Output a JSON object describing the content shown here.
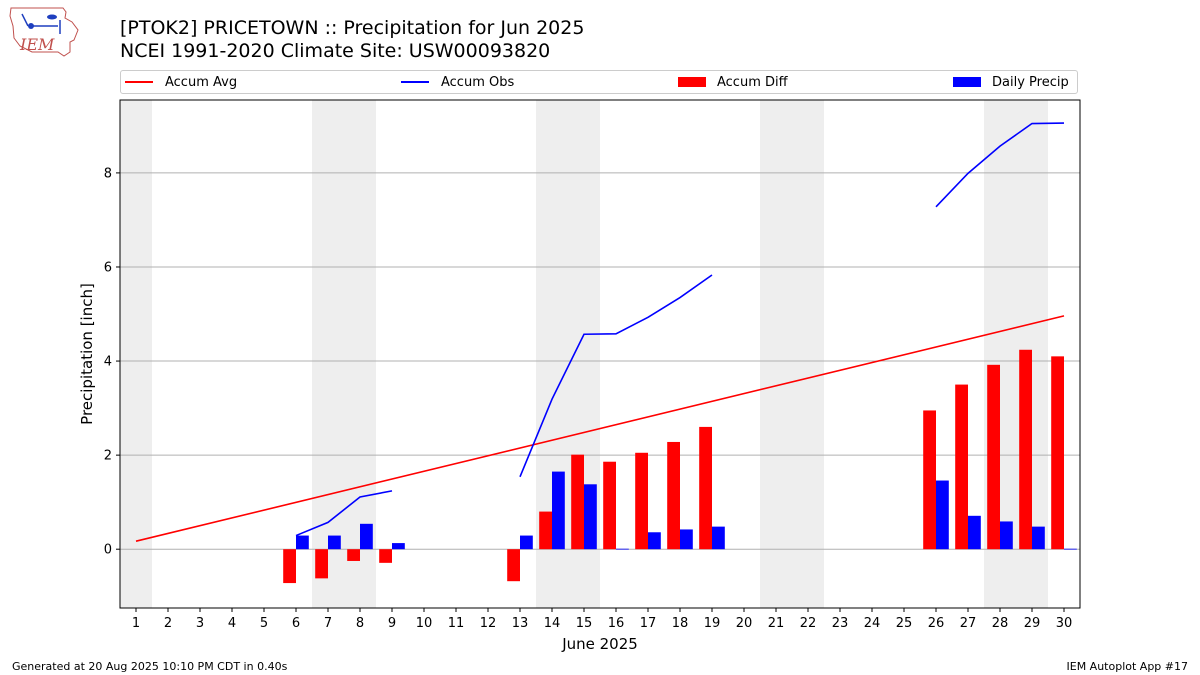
{
  "logo": {
    "text": "IEM"
  },
  "header": {
    "title": "[PTOK2] PRICETOWN :: Precipitation for Jun 2025",
    "subtitle": "NCEI 1991-2020 Climate Site: USW00093820"
  },
  "footer": {
    "left": "Generated at 20 Aug 2025 10:10 PM CDT in 0.40s",
    "right": "IEM Autoplot App #17"
  },
  "chart_data": {
    "type": "bar",
    "xlabel": "June 2025",
    "ylabel": "Precipitation [inch]",
    "xlim": [
      0.5,
      30.5
    ],
    "ylim": [
      -1.25,
      9.55
    ],
    "yticks": [
      0,
      2,
      4,
      6,
      8
    ],
    "xticks": [
      1,
      2,
      3,
      4,
      5,
      6,
      7,
      8,
      9,
      10,
      11,
      12,
      13,
      14,
      15,
      16,
      17,
      18,
      19,
      20,
      21,
      22,
      23,
      24,
      25,
      26,
      27,
      28,
      29,
      30
    ],
    "grid": "y",
    "legend_position": "top",
    "weekend_days": [
      1,
      7,
      8,
      14,
      15,
      21,
      22,
      28,
      29
    ],
    "colors": {
      "avg": "#ff0000",
      "obs": "#0000ff",
      "diff": "#ff0000",
      "daily": "#0000ff",
      "shade": "#eeeeee",
      "grid": "#b0b0b0"
    },
    "series": [
      {
        "name": "Accum Avg",
        "kind": "line",
        "x": [
          1,
          30
        ],
        "y": [
          0.17,
          4.96
        ]
      },
      {
        "name": "Accum Obs",
        "kind": "line",
        "segments": [
          {
            "x": [
              6,
              7,
              8,
              9
            ],
            "y": [
              0.29,
              0.57,
              1.11,
              1.24
            ]
          },
          {
            "x": [
              13,
              14,
              15,
              16,
              17,
              18,
              19
            ],
            "y": [
              1.54,
              3.19,
              4.57,
              4.58,
              4.93,
              5.35,
              5.83
            ]
          },
          {
            "x": [
              26,
              27,
              28,
              29,
              30
            ],
            "y": [
              7.28,
              7.99,
              8.57,
              9.05,
              9.06
            ]
          }
        ]
      },
      {
        "name": "Accum Diff",
        "kind": "bar",
        "x": [
          6,
          7,
          8,
          9,
          13,
          14,
          15,
          16,
          17,
          18,
          19,
          26,
          27,
          28,
          29,
          30
        ],
        "y": [
          -0.72,
          -0.62,
          -0.25,
          -0.29,
          -0.68,
          0.8,
          2.01,
          1.86,
          2.05,
          2.28,
          2.6,
          2.95,
          3.5,
          3.92,
          4.24,
          4.1
        ]
      },
      {
        "name": "Daily Precip",
        "kind": "bar",
        "x": [
          6,
          7,
          8,
          9,
          13,
          14,
          15,
          16,
          17,
          18,
          19,
          26,
          27,
          28,
          29,
          30
        ],
        "y": [
          0.29,
          0.29,
          0.54,
          0.13,
          0.29,
          1.65,
          1.38,
          0.01,
          0.36,
          0.42,
          0.48,
          1.46,
          0.71,
          0.59,
          0.48,
          0.01
        ]
      }
    ]
  }
}
